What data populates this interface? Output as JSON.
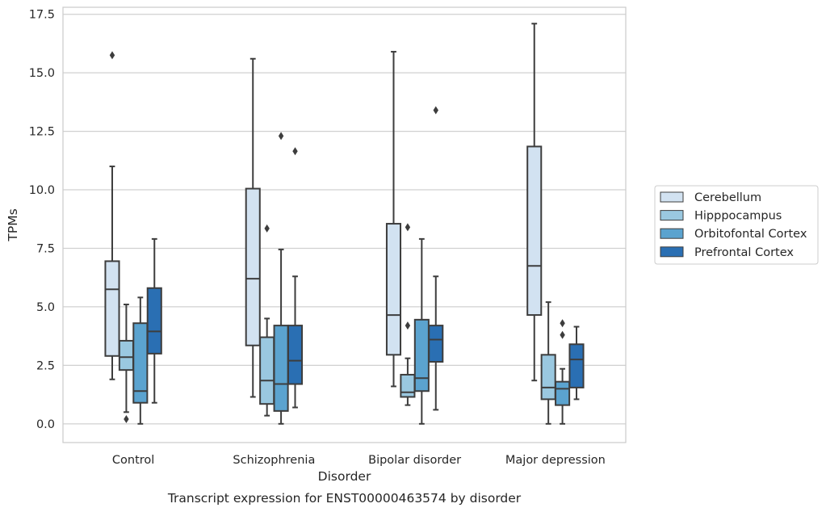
{
  "chart_data": {
    "type": "box",
    "caption": "Transcript expression for ENST00000463574 by disorder",
    "xlabel": "Disorder",
    "ylabel": "TPMs",
    "ylim": [
      -0.8,
      17.8
    ],
    "yticks": [
      0.0,
      2.5,
      5.0,
      7.5,
      10.0,
      12.5,
      15.0,
      17.5
    ],
    "ytick_labels": [
      "0.0",
      "2.5",
      "5.0",
      "7.5",
      "10.0",
      "12.5",
      "15.0",
      "17.5"
    ],
    "grid": "horizontal",
    "legend_position": "right",
    "categories": [
      "Control",
      "Schizophrenia",
      "Bipolar disorder",
      "Major depression"
    ],
    "series": [
      {
        "name": "Cerebellum",
        "color": "#d2e2f1",
        "boxes": [
          {
            "whislo": 1.9,
            "q1": 2.9,
            "med": 5.75,
            "q3": 6.95,
            "whishi": 11.0,
            "fliers": [
              15.75
            ]
          },
          {
            "whislo": 1.15,
            "q1": 3.35,
            "med": 6.2,
            "q3": 10.05,
            "whishi": 15.6,
            "fliers": []
          },
          {
            "whislo": 1.6,
            "q1": 2.95,
            "med": 4.65,
            "q3": 8.55,
            "whishi": 15.9,
            "fliers": []
          },
          {
            "whislo": 1.85,
            "q1": 4.65,
            "med": 6.75,
            "q3": 11.85,
            "whishi": 17.1,
            "fliers": []
          }
        ]
      },
      {
        "name": "Hipppocampus",
        "color": "#9ac8e0",
        "boxes": [
          {
            "whislo": 0.5,
            "q1": 2.3,
            "med": 2.85,
            "q3": 3.55,
            "whishi": 5.1,
            "fliers": [
              0.2
            ]
          },
          {
            "whislo": 0.35,
            "q1": 0.85,
            "med": 1.85,
            "q3": 3.7,
            "whishi": 4.5,
            "fliers": [
              8.35
            ]
          },
          {
            "whislo": 0.8,
            "q1": 1.15,
            "med": 1.35,
            "q3": 2.1,
            "whishi": 2.8,
            "fliers": [
              8.4,
              4.2
            ]
          },
          {
            "whislo": 0.0,
            "q1": 1.05,
            "med": 1.55,
            "q3": 2.95,
            "whishi": 5.2,
            "fliers": []
          }
        ]
      },
      {
        "name": "Orbitofontal Cortex",
        "color": "#5ba3cf",
        "boxes": [
          {
            "whislo": 0.0,
            "q1": 0.9,
            "med": 1.4,
            "q3": 4.3,
            "whishi": 5.4,
            "fliers": []
          },
          {
            "whislo": 0.0,
            "q1": 0.55,
            "med": 1.7,
            "q3": 4.2,
            "whishi": 7.45,
            "fliers": [
              12.3
            ]
          },
          {
            "whislo": 0.0,
            "q1": 1.4,
            "med": 1.95,
            "q3": 4.45,
            "whishi": 7.9,
            "fliers": []
          },
          {
            "whislo": 0.0,
            "q1": 0.8,
            "med": 1.5,
            "q3": 1.8,
            "whishi": 2.35,
            "fliers": [
              4.3,
              3.8
            ]
          }
        ]
      },
      {
        "name": "Prefrontal Cortex",
        "color": "#2a6fb3",
        "boxes": [
          {
            "whislo": 0.9,
            "q1": 3.0,
            "med": 3.95,
            "q3": 5.8,
            "whishi": 7.9,
            "fliers": []
          },
          {
            "whislo": 0.7,
            "q1": 1.7,
            "med": 2.7,
            "q3": 4.2,
            "whishi": 6.3,
            "fliers": [
              11.65
            ]
          },
          {
            "whislo": 0.6,
            "q1": 2.65,
            "med": 3.6,
            "q3": 4.2,
            "whishi": 6.3,
            "fliers": [
              13.4
            ]
          },
          {
            "whislo": 1.05,
            "q1": 1.55,
            "med": 2.75,
            "q3": 3.4,
            "whishi": 4.15,
            "fliers": []
          }
        ]
      }
    ]
  }
}
